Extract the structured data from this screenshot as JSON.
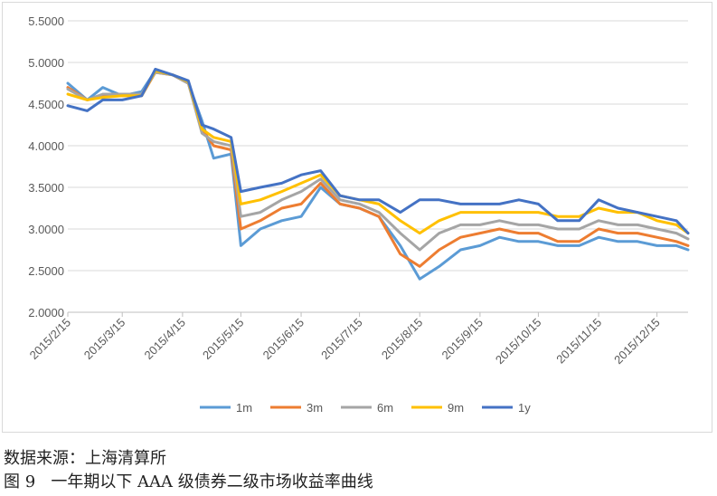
{
  "source_note": "数据来源：上海清算所",
  "figure_caption": "图 9   一年期以下 AAA 级债券二级市场收益率曲线",
  "chart_data": {
    "type": "line",
    "ylim": [
      2.0,
      5.5
    ],
    "yticks": [
      "2.0000",
      "2.5000",
      "3.0000",
      "3.5000",
      "4.0000",
      "4.5000",
      "5.0000",
      "5.5000"
    ],
    "ytick_values": [
      2.0,
      2.5,
      3.0,
      3.5,
      4.0,
      4.5,
      5.0,
      5.5
    ],
    "xlim": [
      "2015-02-15",
      "2015-12-31"
    ],
    "xticks": [
      "2015/2/15",
      "2015/3/15",
      "2015/4/15",
      "2015/5/15",
      "2015/6/15",
      "2015/7/15",
      "2015/8/15",
      "2015/9/15",
      "2015/10/15",
      "2015/11/15",
      "2015/12/15"
    ],
    "xtick_dates": [
      "2015-02-15",
      "2015-03-15",
      "2015-04-15",
      "2015-05-15",
      "2015-06-15",
      "2015-07-15",
      "2015-08-15",
      "2015-09-15",
      "2015-10-15",
      "2015-11-15",
      "2015-12-15"
    ],
    "grid": true,
    "legend_position": "bottom",
    "x": [
      "2015-02-15",
      "2015-02-25",
      "2015-03-05",
      "2015-03-15",
      "2015-03-25",
      "2015-04-01",
      "2015-04-10",
      "2015-04-18",
      "2015-04-25",
      "2015-05-01",
      "2015-05-10",
      "2015-05-15",
      "2015-05-25",
      "2015-06-05",
      "2015-06-15",
      "2015-06-25",
      "2015-07-05",
      "2015-07-15",
      "2015-07-25",
      "2015-08-05",
      "2015-08-15",
      "2015-08-25",
      "2015-09-05",
      "2015-09-15",
      "2015-09-25",
      "2015-10-05",
      "2015-10-15",
      "2015-10-25",
      "2015-11-05",
      "2015-11-15",
      "2015-11-25",
      "2015-12-05",
      "2015-12-15",
      "2015-12-25",
      "2015-12-31"
    ],
    "series": [
      {
        "name": "1m",
        "color": "#5b9bd5",
        "values": [
          4.75,
          4.55,
          4.7,
          4.6,
          4.65,
          4.9,
          4.85,
          4.75,
          4.3,
          3.85,
          3.9,
          2.8,
          3.0,
          3.1,
          3.15,
          3.5,
          3.3,
          3.25,
          3.15,
          2.8,
          2.4,
          2.55,
          2.75,
          2.8,
          2.9,
          2.85,
          2.85,
          2.8,
          2.8,
          2.9,
          2.85,
          2.85,
          2.8,
          2.8,
          2.75
        ]
      },
      {
        "name": "3m",
        "color": "#ed7d31",
        "values": [
          4.7,
          4.55,
          4.6,
          4.6,
          4.6,
          4.88,
          4.85,
          4.75,
          4.2,
          4.0,
          3.95,
          3.0,
          3.1,
          3.25,
          3.3,
          3.55,
          3.3,
          3.25,
          3.15,
          2.7,
          2.55,
          2.75,
          2.9,
          2.95,
          3.0,
          2.95,
          2.95,
          2.85,
          2.85,
          3.0,
          2.95,
          2.95,
          2.9,
          2.85,
          2.8
        ]
      },
      {
        "name": "6m",
        "color": "#a5a5a5",
        "values": [
          4.68,
          4.55,
          4.62,
          4.62,
          4.62,
          4.88,
          4.85,
          4.75,
          4.15,
          4.05,
          4.0,
          3.15,
          3.2,
          3.35,
          3.45,
          3.6,
          3.35,
          3.3,
          3.2,
          2.95,
          2.75,
          2.95,
          3.05,
          3.05,
          3.1,
          3.05,
          3.05,
          3.0,
          3.0,
          3.1,
          3.05,
          3.05,
          3.0,
          2.95,
          2.88
        ]
      },
      {
        "name": "9m",
        "color": "#ffc000",
        "values": [
          4.62,
          4.55,
          4.58,
          4.6,
          4.6,
          4.9,
          4.85,
          4.77,
          4.2,
          4.1,
          4.05,
          3.3,
          3.35,
          3.45,
          3.55,
          3.65,
          3.4,
          3.35,
          3.3,
          3.1,
          2.95,
          3.1,
          3.2,
          3.2,
          3.2,
          3.2,
          3.2,
          3.15,
          3.15,
          3.25,
          3.2,
          3.2,
          3.1,
          3.05,
          2.95
        ]
      },
      {
        "name": "1y",
        "color": "#4472c4",
        "values": [
          4.48,
          4.42,
          4.55,
          4.55,
          4.6,
          4.92,
          4.85,
          4.78,
          4.25,
          4.2,
          4.1,
          3.45,
          3.5,
          3.55,
          3.65,
          3.7,
          3.4,
          3.35,
          3.35,
          3.2,
          3.35,
          3.35,
          3.3,
          3.3,
          3.3,
          3.35,
          3.3,
          3.1,
          3.1,
          3.35,
          3.25,
          3.2,
          3.15,
          3.1,
          2.95
        ]
      }
    ]
  }
}
